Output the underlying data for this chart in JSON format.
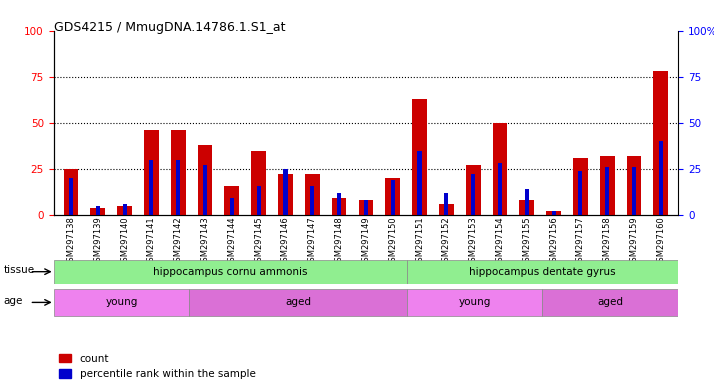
{
  "title": "GDS4215 / MmugDNA.14786.1.S1_at",
  "samples": [
    "GSM297138",
    "GSM297139",
    "GSM297140",
    "GSM297141",
    "GSM297142",
    "GSM297143",
    "GSM297144",
    "GSM297145",
    "GSM297146",
    "GSM297147",
    "GSM297148",
    "GSM297149",
    "GSM297150",
    "GSM297151",
    "GSM297152",
    "GSM297153",
    "GSM297154",
    "GSM297155",
    "GSM297156",
    "GSM297157",
    "GSM297158",
    "GSM297159",
    "GSM297160"
  ],
  "counts": [
    25,
    4,
    5,
    46,
    46,
    38,
    16,
    35,
    22,
    22,
    9,
    8,
    20,
    63,
    6,
    27,
    50,
    8,
    2,
    31,
    32,
    32,
    78
  ],
  "pcts": [
    20,
    5,
    6,
    30,
    30,
    27,
    9,
    16,
    25,
    16,
    12,
    8,
    19,
    35,
    12,
    22,
    28,
    14,
    2,
    24,
    26,
    26,
    40
  ],
  "red_color": "#CC0000",
  "blue_color": "#0000CC",
  "ylim": [
    0,
    100
  ],
  "yticks": [
    0,
    25,
    50,
    75,
    100
  ],
  "tissue_groups": [
    {
      "label": "hippocampus cornu ammonis",
      "start": 0,
      "end": 13,
      "color": "#90EE90"
    },
    {
      "label": "hippocampus dentate gyrus",
      "start": 13,
      "end": 23,
      "color": "#90EE90"
    }
  ],
  "age_groups": [
    {
      "label": "young",
      "start": 0,
      "end": 5,
      "color": "#EE82EE"
    },
    {
      "label": "aged",
      "start": 5,
      "end": 13,
      "color": "#DA70D6"
    },
    {
      "label": "young",
      "start": 13,
      "end": 18,
      "color": "#EE82EE"
    },
    {
      "label": "aged",
      "start": 18,
      "end": 23,
      "color": "#DA70D6"
    }
  ]
}
